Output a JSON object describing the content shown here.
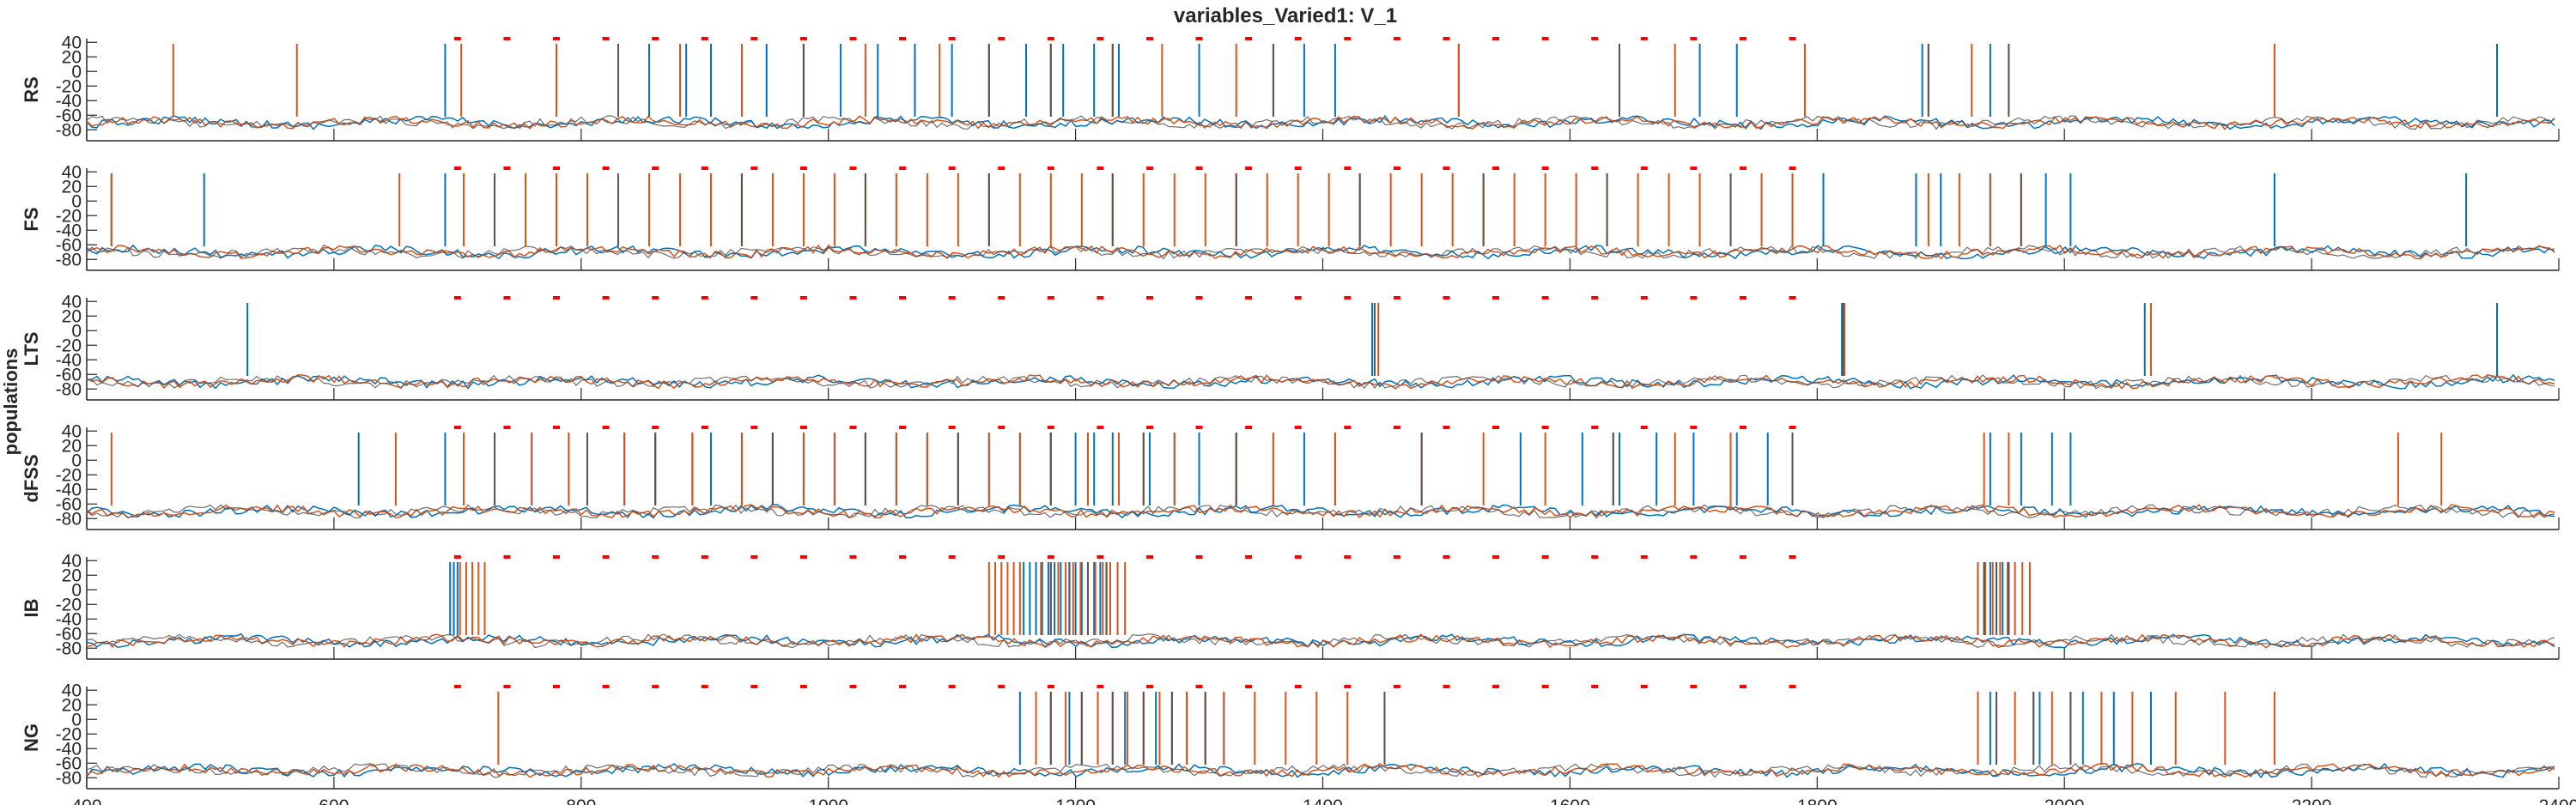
{
  "chart_data": {
    "type": "line",
    "title": "variables_Varied1: V_1",
    "ylabel": "populations",
    "xlim": [
      400,
      2400
    ],
    "x_ticks": [
      "400",
      "600",
      "800",
      "1000",
      "1200",
      "1400",
      "1600",
      "1800",
      "2000",
      "2200",
      "2400"
    ],
    "ylim": [
      -95,
      45
    ],
    "y_ticks": [
      "40",
      "20",
      "0",
      "-20",
      "-40",
      "-60",
      "-80"
    ],
    "grid": false,
    "colors": {
      "series1": "#0072BD",
      "series2": "#D95319",
      "series3": "#555555",
      "marker": "#FF0000"
    },
    "panels": [
      {
        "name": "RS",
        "spikes1": [
          690,
          855,
          885,
          905,
          950,
          980,
          1010,
          1040,
          1070,
          1100,
          1130,
          1160,
          1190,
          1215,
          1235,
          1300,
          1385,
          1410,
          1510,
          1640,
          1705,
          1735,
          1885,
          1940,
          2350
        ],
        "spikes2": [
          470,
          570,
          703,
          780,
          830,
          880,
          930,
          980,
          1030,
          1090,
          1130,
          1180,
          1230,
          1270,
          1330,
          1360,
          1510,
          1640,
          1685,
          1790,
          1890,
          1925,
          1955,
          2170
        ],
        "spikes3": [
          830,
          980,
          1130,
          1180,
          1230,
          1360,
          1640,
          1890,
          1955
        ]
      },
      {
        "name": "FS",
        "spikes1": [
          420,
          495,
          690,
          1805,
          1880,
          1900,
          1940,
          1985,
          2005,
          2170,
          2325
        ],
        "spikes2": [
          420,
          653,
          705,
          730,
          755,
          780,
          805,
          830,
          855,
          880,
          905,
          930,
          955,
          980,
          1005,
          1030,
          1055,
          1080,
          1105,
          1130,
          1155,
          1180,
          1205,
          1230,
          1255,
          1280,
          1305,
          1330,
          1355,
          1380,
          1405,
          1430,
          1455,
          1480,
          1505,
          1530,
          1555,
          1580,
          1605,
          1630,
          1655,
          1680,
          1705,
          1730,
          1755,
          1780,
          1890,
          1915,
          1940,
          1965
        ],
        "spikes3": [
          730,
          830,
          930,
          1030,
          1130,
          1230,
          1330,
          1430,
          1530,
          1630,
          1730,
          1965
        ]
      },
      {
        "name": "LTS",
        "spikes1": [
          530,
          1440,
          1820,
          2065,
          2350
        ],
        "spikes2": [
          1445,
          1822,
          2070
        ],
        "spikes3": [
          1442,
          1821
        ]
      },
      {
        "name": "dFSS",
        "spikes1": [
          620,
          690,
          730,
          760,
          790,
          805,
          835,
          860,
          890,
          905,
          930,
          955,
          980,
          1005,
          1030,
          1055,
          1080,
          1105,
          1130,
          1155,
          1180,
          1200,
          1215,
          1230,
          1260,
          1280,
          1300,
          1330,
          1360,
          1385,
          1410,
          1560,
          1610,
          1640,
          1670,
          1700,
          1735,
          1760,
          1940,
          1965,
          1990,
          2005
        ],
        "spikes2": [
          420,
          650,
          705,
          730,
          760,
          790,
          805,
          835,
          860,
          890,
          930,
          955,
          980,
          1005,
          1030,
          1055,
          1080,
          1105,
          1130,
          1155,
          1180,
          1210,
          1235,
          1255,
          1280,
          1330,
          1360,
          1410,
          1480,
          1530,
          1580,
          1635,
          1685,
          1730,
          1780,
          1935,
          1955,
          2270,
          2305
        ],
        "spikes3": [
          730,
          805,
          860,
          955,
          1030,
          1105,
          1180,
          1255,
          1330,
          1480,
          1635,
          1780
        ]
      },
      {
        "name": "IB",
        "spikes1": [
          694,
          697,
          700,
          1158,
          1163,
          1168,
          1173,
          1178,
          1183,
          1188,
          1195,
          1200,
          1205,
          1210,
          1215,
          1220,
          1225,
          1930,
          1935,
          1940,
          1945,
          1950
        ],
        "spikes2": [
          702,
          707,
          712,
          717,
          722,
          1130,
          1135,
          1140,
          1145,
          1150,
          1155,
          1172,
          1180,
          1186,
          1192,
          1198,
          1204,
          1210,
          1216,
          1222,
          1228,
          1234,
          1240,
          1930,
          1936,
          1942,
          1948,
          1954,
          1960,
          1966,
          1972
        ],
        "spikes3": [
          1180,
          1195,
          1210,
          1225,
          1935,
          1945,
          1955
        ]
      },
      {
        "name": "NG",
        "spikes1": [
          1155,
          1195,
          1218,
          1240,
          1265,
          1290,
          1320,
          1940,
          1980,
          2015,
          2040,
          2070
        ],
        "spikes2": [
          733,
          1168,
          1180,
          1192,
          1205,
          1218,
          1230,
          1242,
          1255,
          1268,
          1278,
          1290,
          1305,
          1320,
          1345,
          1370,
          1395,
          1420,
          1450,
          1930,
          1945,
          1960,
          1975,
          1990,
          2005,
          2030,
          2055,
          2090,
          2130,
          2170
        ],
        "spikes3": [
          1180,
          1205,
          1230,
          1255,
          1278,
          1305,
          1450,
          1945,
          1975,
          2005
        ]
      }
    ]
  }
}
